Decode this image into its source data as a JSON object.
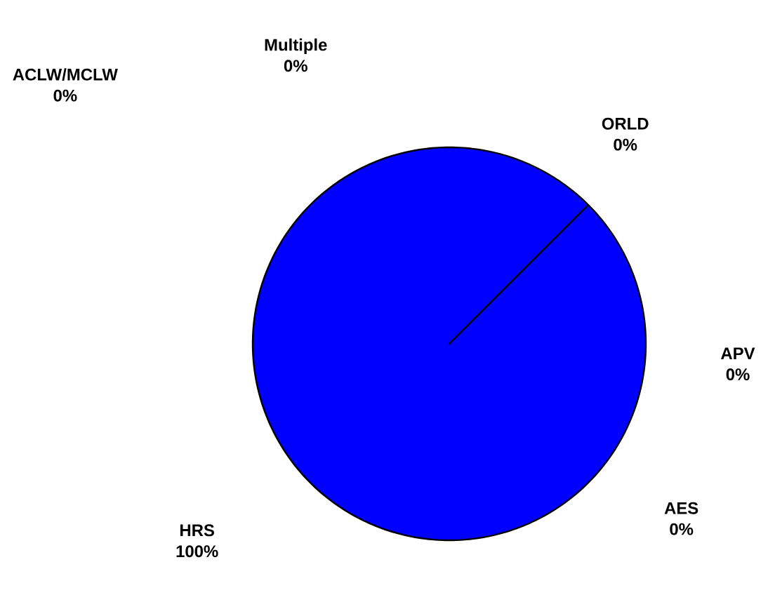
{
  "chart_data": {
    "type": "pie",
    "categories": [
      "ORLD",
      "APV",
      "AES",
      "HRS",
      "ACLW/MCLW",
      "Multiple"
    ],
    "values": [
      0,
      0,
      0,
      100,
      0,
      0
    ],
    "value_labels": [
      "0%",
      "0%",
      "0%",
      "100%",
      "0%",
      "0%"
    ],
    "colors": [
      "#9999ff",
      "#993366",
      "#ffffcc",
      "#0000ff",
      "#ccffff",
      "#660066"
    ]
  }
}
